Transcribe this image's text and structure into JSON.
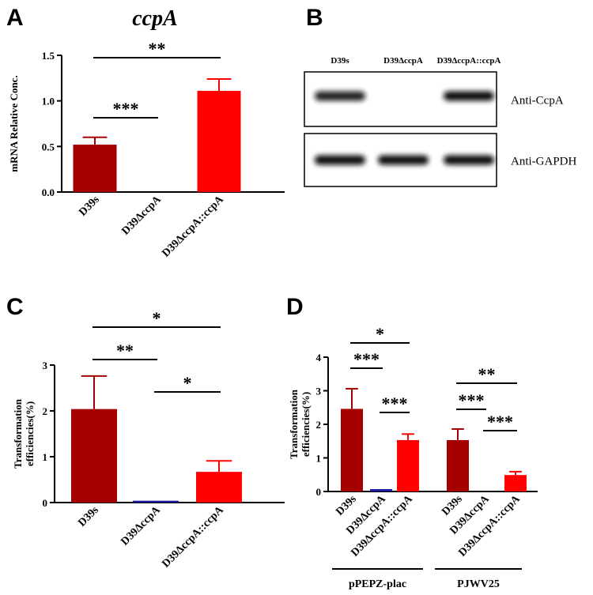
{
  "panels": [
    {
      "label": "A"
    },
    {
      "label": "B"
    },
    {
      "label": "C"
    },
    {
      "label": "D"
    }
  ],
  "chart_data": [
    {
      "panel": "A",
      "type": "bar",
      "title": "ccpA",
      "ylabel": "mRNA Relative Conc.",
      "xlabel": "",
      "ylim": [
        0,
        1.5
      ],
      "yticks": [
        "0.0",
        "0.5",
        "1.0",
        "1.5"
      ],
      "categories": [
        "D39s",
        "D39ΔccpA",
        "D39ΔccpA::ccpA"
      ],
      "values": [
        0.52,
        0.0,
        1.11
      ],
      "errors": [
        0.08,
        0.0,
        0.13
      ],
      "colors": [
        "#a50000",
        "#1a1aa0",
        "#ff0000"
      ],
      "significance": [
        {
          "from": 0,
          "to": 1,
          "label": "***"
        },
        {
          "from": 0,
          "to": 2,
          "label": "**"
        }
      ]
    },
    {
      "panel": "C",
      "type": "bar",
      "title": "",
      "ylabel_lines": [
        "Transformation",
        "efficiencies(%)"
      ],
      "xlabel": "",
      "ylim": [
        0,
        3
      ],
      "yticks": [
        "0",
        "1",
        "2",
        "3"
      ],
      "categories": [
        "D39s",
        "D39ΔccpA",
        "D39ΔccpA::ccpA"
      ],
      "values": [
        2.04,
        0.04,
        0.67
      ],
      "errors": [
        0.72,
        0.0,
        0.24
      ],
      "colors": [
        "#a50000",
        "#1a1aa0",
        "#ff0000"
      ],
      "significance": [
        {
          "from": 0,
          "to": 1,
          "label": "**"
        },
        {
          "from": 1,
          "to": 2,
          "label": "*"
        },
        {
          "from": 0,
          "to": 2,
          "label": "*"
        }
      ]
    },
    {
      "panel": "D",
      "type": "bar",
      "title": "",
      "ylabel_lines": [
        "Transformation",
        "efficiencies(%)"
      ],
      "xlabel": "",
      "ylim": [
        0,
        4
      ],
      "yticks": [
        "0",
        "1",
        "2",
        "3",
        "4"
      ],
      "groups": [
        {
          "name": "pPEPZ-plac",
          "categories": [
            "D39s",
            "D39ΔccpA",
            "D39ΔccpA::ccpA"
          ],
          "values": [
            2.46,
            0.07,
            1.53
          ],
          "errors": [
            0.6,
            0.0,
            0.18
          ],
          "significance": [
            {
              "from": 0,
              "to": 1,
              "label": "***"
            },
            {
              "from": 1,
              "to": 2,
              "label": "***"
            },
            {
              "from": 0,
              "to": 2,
              "label": "*"
            }
          ]
        },
        {
          "name": "PJWV25",
          "categories": [
            "D39s",
            "D39ΔccpA",
            "D39ΔccpA::ccpA"
          ],
          "values": [
            1.53,
            0.0,
            0.49
          ],
          "errors": [
            0.33,
            0.0,
            0.1
          ],
          "significance": [
            {
              "from": 0,
              "to": 1,
              "label": "***"
            },
            {
              "from": 1,
              "to": 2,
              "label": "***"
            },
            {
              "from": 0,
              "to": 2,
              "label": "**"
            }
          ]
        }
      ],
      "colors": [
        "#a50000",
        "#1a1aa0",
        "#ff0000"
      ]
    }
  ],
  "western_blot": {
    "panel": "B",
    "columns": [
      "D39s",
      "D39ΔccpA",
      "D39ΔccpA::ccpA"
    ],
    "rows": [
      {
        "antibody": "Anti-CcpA",
        "bands": [
          0.8,
          0.0,
          1.0
        ]
      },
      {
        "antibody": "Anti-GAPDH",
        "bands": [
          1.0,
          1.0,
          1.0
        ]
      }
    ]
  }
}
